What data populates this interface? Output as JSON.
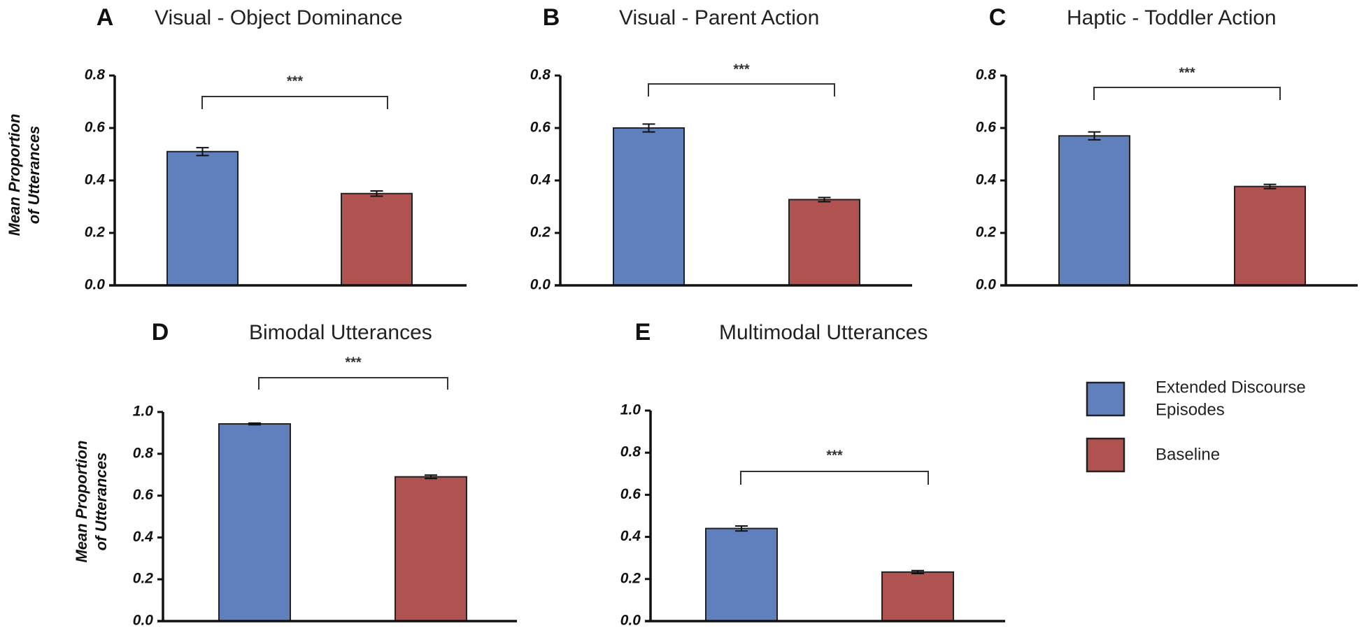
{
  "colors": {
    "extended": "#5f7fbd",
    "baseline": "#b0524f",
    "outline": "#222222"
  },
  "legend": {
    "items": [
      {
        "lines": [
          "Extended Discourse",
          "Episodes"
        ],
        "color_key": "extended"
      },
      {
        "lines": [
          "Baseline"
        ],
        "color_key": "baseline"
      }
    ]
  },
  "chart_data": [
    {
      "type": "bar",
      "letter": "A",
      "title": "Visual - Object Dominance",
      "ylabel": [
        "Mean Proportion",
        "of Utterances"
      ],
      "ylim": [
        0,
        0.8
      ],
      "ticks": [
        "0.0",
        "0.2",
        "0.4",
        "0.6",
        "0.8"
      ],
      "categories": [
        "Extended Discourse Episodes",
        "Baseline"
      ],
      "values": [
        0.51,
        0.35
      ],
      "errors": [
        0.015,
        0.01
      ],
      "significance": "***"
    },
    {
      "type": "bar",
      "letter": "B",
      "title": "Visual - Parent Action",
      "ylabel": null,
      "ylim": [
        0,
        0.8
      ],
      "ticks": [
        "0.0",
        "0.2",
        "0.4",
        "0.6",
        "0.8"
      ],
      "categories": [
        "Extended Discourse Episodes",
        "Baseline"
      ],
      "values": [
        0.6,
        0.327
      ],
      "errors": [
        0.015,
        0.008
      ],
      "significance": "***"
    },
    {
      "type": "bar",
      "letter": "C",
      "title": "Haptic - Toddler Action",
      "ylabel": null,
      "ylim": [
        0,
        0.8
      ],
      "ticks": [
        "0.0",
        "0.2",
        "0.4",
        "0.6",
        "0.8"
      ],
      "categories": [
        "Extended Discourse Episodes",
        "Baseline"
      ],
      "values": [
        0.57,
        0.377
      ],
      "errors": [
        0.015,
        0.008
      ],
      "significance": "***"
    },
    {
      "type": "bar",
      "letter": "D",
      "title": "Bimodal Utterances",
      "ylabel": [
        "Mean Proportion",
        "of Utterances"
      ],
      "ylim": [
        0,
        1.0
      ],
      "ticks": [
        "0.0",
        "0.2",
        "0.4",
        "0.6",
        "0.8",
        "1.0"
      ],
      "categories": [
        "Extended Discourse Episodes",
        "Baseline"
      ],
      "values": [
        0.943,
        0.69
      ],
      "errors": [
        0.004,
        0.008
      ],
      "significance": "***"
    },
    {
      "type": "bar",
      "letter": "E",
      "title": "Multimodal Utterances",
      "ylabel": null,
      "ylim": [
        0,
        1.0
      ],
      "ticks": [
        "0.0",
        "0.2",
        "0.4",
        "0.6",
        "0.8",
        "1.0"
      ],
      "categories": [
        "Extended Discourse Episodes",
        "Baseline"
      ],
      "values": [
        0.44,
        0.233
      ],
      "errors": [
        0.012,
        0.007
      ],
      "significance": "***"
    }
  ]
}
